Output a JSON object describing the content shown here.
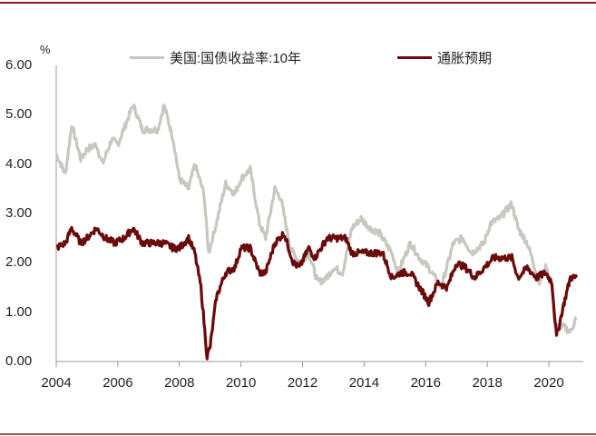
{
  "chart_data": {
    "type": "line",
    "title": "",
    "xlabel": "",
    "ylabel": "%",
    "ylim": [
      0,
      6
    ],
    "xlim": [
      2004,
      2021.1
    ],
    "grid": false,
    "legend_position": "top",
    "y_ticks": [
      "0.00",
      "1.00",
      "2.00",
      "3.00",
      "4.00",
      "5.00",
      "6.00"
    ],
    "x_ticks": [
      "2004",
      "2006",
      "2008",
      "2010",
      "2012",
      "2014",
      "2016",
      "2018",
      "2020"
    ],
    "series": [
      {
        "name": "美国:国债收益率:10年",
        "color": "#c8c8c0",
        "x": [
          2004.0,
          2004.3,
          2004.5,
          2004.8,
          2005.0,
          2005.3,
          2005.5,
          2005.8,
          2006.0,
          2006.5,
          2006.8,
          2007.0,
          2007.3,
          2007.5,
          2007.8,
          2008.0,
          2008.3,
          2008.5,
          2008.8,
          2008.95,
          2009.2,
          2009.5,
          2009.8,
          2010.0,
          2010.3,
          2010.6,
          2010.8,
          2011.1,
          2011.3,
          2011.6,
          2011.9,
          2012.2,
          2012.5,
          2012.8,
          2013.0,
          2013.3,
          2013.6,
          2013.9,
          2014.2,
          2014.5,
          2014.9,
          2015.1,
          2015.5,
          2015.8,
          2016.1,
          2016.5,
          2016.9,
          2017.2,
          2017.5,
          2017.9,
          2018.1,
          2018.4,
          2018.8,
          2019.0,
          2019.3,
          2019.7,
          2019.9,
          2020.1,
          2020.2,
          2020.5,
          2020.7,
          2020.9
        ],
        "values": [
          4.2,
          3.8,
          4.8,
          4.1,
          4.3,
          4.4,
          4.0,
          4.5,
          4.4,
          5.2,
          4.7,
          4.7,
          4.7,
          5.2,
          4.5,
          3.7,
          3.5,
          4.0,
          3.4,
          2.2,
          2.8,
          3.6,
          3.4,
          3.7,
          3.9,
          2.8,
          2.5,
          3.5,
          3.3,
          2.3,
          2.0,
          2.2,
          1.6,
          1.7,
          1.9,
          1.8,
          2.7,
          2.9,
          2.7,
          2.6,
          2.2,
          1.8,
          2.4,
          2.1,
          1.9,
          1.5,
          2.4,
          2.5,
          2.2,
          2.4,
          2.8,
          2.9,
          3.2,
          2.7,
          2.4,
          1.6,
          1.9,
          1.6,
          0.7,
          0.7,
          0.6,
          0.9
        ]
      },
      {
        "name": "通胀预期",
        "color": "#6b0a0a",
        "x": [
          2004.0,
          2004.3,
          2004.5,
          2004.8,
          2005.0,
          2005.3,
          2005.6,
          2005.9,
          2006.2,
          2006.5,
          2006.8,
          2007.2,
          2007.5,
          2007.8,
          2008.0,
          2008.3,
          2008.5,
          2008.7,
          2008.9,
          2009.0,
          2009.2,
          2009.5,
          2009.8,
          2010.0,
          2010.3,
          2010.6,
          2010.8,
          2011.1,
          2011.4,
          2011.7,
          2011.9,
          2012.2,
          2012.4,
          2012.8,
          2013.0,
          2013.4,
          2013.6,
          2013.9,
          2014.3,
          2014.6,
          2014.9,
          2015.2,
          2015.5,
          2015.8,
          2016.1,
          2016.4,
          2016.7,
          2017.0,
          2017.3,
          2017.6,
          2017.9,
          2018.2,
          2018.5,
          2018.8,
          2019.0,
          2019.3,
          2019.6,
          2019.9,
          2020.1,
          2020.25,
          2020.5,
          2020.7,
          2020.9
        ],
        "values": [
          2.3,
          2.4,
          2.7,
          2.4,
          2.5,
          2.7,
          2.5,
          2.4,
          2.5,
          2.7,
          2.4,
          2.4,
          2.4,
          2.3,
          2.3,
          2.5,
          2.2,
          1.5,
          0.1,
          0.3,
          1.3,
          1.8,
          1.9,
          2.3,
          2.3,
          1.8,
          1.8,
          2.4,
          2.6,
          2.0,
          1.9,
          2.3,
          2.1,
          2.5,
          2.5,
          2.5,
          2.2,
          2.2,
          2.2,
          2.2,
          1.7,
          1.8,
          1.8,
          1.5,
          1.2,
          1.6,
          1.5,
          2.0,
          1.9,
          1.7,
          1.9,
          2.1,
          2.1,
          2.1,
          1.7,
          1.9,
          1.7,
          1.8,
          1.6,
          0.5,
          1.2,
          1.7,
          1.7
        ]
      }
    ]
  },
  "legend": {
    "items": [
      {
        "label": "美国:国债收益率:10年",
        "color": "#c8c8c0"
      },
      {
        "label": "通胀预期",
        "color": "#6b0a0a"
      }
    ]
  },
  "axis": {
    "y_unit": "%",
    "axis_color": "#999999"
  },
  "frame": {
    "top_rule_color": "#8b1a1a",
    "bottom_rule_color": "#8a5a5a"
  }
}
